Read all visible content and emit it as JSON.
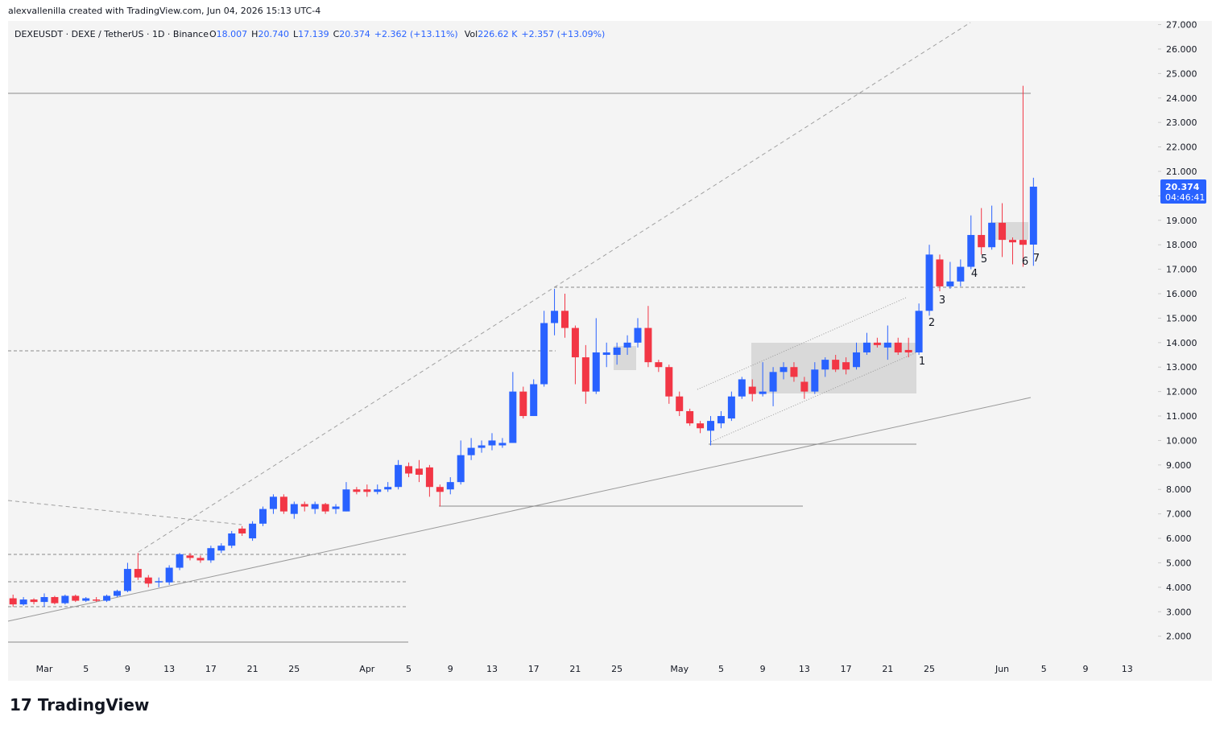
{
  "header": "alexvallenilla created with TradingView.com, Jun 04, 2026 15:13 UTC-4",
  "logo": "TradingView",
  "chart_data": {
    "type": "candlestick",
    "symbol": "DEXEUSDT · DEXE / TetherUS · 1D · Binance",
    "ohlc_legend": [
      {
        "label": "O",
        "value": "18.007"
      },
      {
        "label": "H",
        "value": "20.740"
      },
      {
        "label": "L",
        "value": "17.139"
      },
      {
        "label": "C",
        "value": "20.374"
      }
    ],
    "change": "+2.362 (+13.11%)",
    "volume": {
      "label": "Vol",
      "value": "226.62 K",
      "change": "+2.357 (+13.09%)"
    },
    "last_price_label": "20.374",
    "countdown": "04:46:41",
    "wave_labels": [
      "1",
      "2",
      "3",
      "4",
      "5",
      "6",
      "7"
    ],
    "up_color": "#2962ff",
    "down_color": "#f23645",
    "categories": [
      null,
      null,
      null,
      "Mar",
      null,
      null,
      null,
      "5",
      null,
      null,
      null,
      "9",
      null,
      null,
      null,
      "13",
      null,
      null,
      null,
      "17",
      null,
      null,
      null,
      "21",
      null,
      null,
      null,
      "25",
      null,
      null,
      null,
      null,
      null,
      null,
      "Apr",
      null,
      null,
      null,
      "5",
      null,
      null,
      null,
      "9",
      null,
      null,
      null,
      "13",
      null,
      null,
      null,
      "17",
      null,
      null,
      null,
      "21",
      null,
      null,
      null,
      "25",
      null,
      null,
      null,
      null,
      null,
      "May",
      null,
      null,
      null,
      "5",
      null,
      null,
      null,
      "9",
      null,
      null,
      null,
      "13",
      null,
      null,
      null,
      "17",
      null,
      null,
      null,
      "21",
      null,
      null,
      null,
      "25",
      null,
      null,
      null,
      null,
      null,
      null,
      "Jun",
      null,
      null,
      null,
      "5",
      null,
      null,
      null,
      "9",
      null,
      null,
      null,
      "13",
      null,
      null
    ],
    "open": [
      3.55,
      3.3,
      3.5,
      3.4,
      3.6,
      3.35,
      3.65,
      3.45,
      3.5,
      3.45,
      3.65,
      3.85,
      4.75,
      4.4,
      4.2,
      4.2,
      4.8,
      5.3,
      5.2,
      5.1,
      5.5,
      5.7,
      6.4,
      6.0,
      6.6,
      7.2,
      7.7,
      7.0,
      7.4,
      7.2,
      7.4,
      7.2,
      7.1,
      8.0,
      8.0,
      7.9,
      8.0,
      8.1,
      8.95,
      8.85,
      8.9,
      8.1,
      8.0,
      8.3,
      9.4,
      9.7,
      9.8,
      9.8,
      9.9,
      12.0,
      11.0,
      12.3,
      14.8,
      15.3,
      14.6,
      13.4,
      12.0,
      13.5,
      13.5,
      13.8,
      14.0,
      14.6,
      13.2,
      13.0,
      11.8,
      11.2,
      10.7,
      10.4,
      10.7,
      10.9,
      11.8,
      12.2,
      11.9,
      12.0,
      12.8,
      13.0,
      12.4,
      12.0,
      12.9,
      13.3,
      13.2,
      13.0,
      13.6,
      14.0,
      13.8,
      14.0,
      13.7,
      13.6,
      15.3,
      17.4,
      16.3,
      16.5,
      17.1,
      18.4,
      17.9,
      18.9,
      18.2,
      18.2,
      18.007,
      null,
      null,
      null,
      null,
      null,
      null,
      null,
      null,
      null,
      null,
      null
    ],
    "high": [
      3.7,
      3.6,
      3.55,
      3.75,
      3.65,
      3.7,
      3.7,
      3.6,
      3.6,
      3.7,
      3.9,
      5.0,
      5.4,
      4.5,
      4.4,
      4.9,
      5.4,
      5.4,
      5.3,
      5.7,
      5.8,
      6.3,
      6.5,
      6.7,
      7.3,
      7.8,
      7.8,
      7.5,
      7.5,
      7.5,
      7.45,
      7.4,
      8.3,
      8.1,
      8.2,
      8.2,
      8.3,
      9.2,
      9.1,
      9.2,
      9.0,
      8.2,
      8.5,
      10.0,
      10.1,
      10.0,
      10.3,
      10.1,
      12.8,
      12.2,
      12.5,
      15.3,
      16.2,
      16.0,
      14.7,
      13.9,
      15.0,
      14.0,
      14.0,
      14.3,
      15.0,
      15.5,
      13.3,
      13.1,
      12.0,
      11.3,
      10.8,
      11.0,
      11.2,
      12.0,
      12.6,
      12.5,
      13.2,
      13.0,
      13.2,
      13.2,
      12.6,
      13.2,
      13.4,
      13.5,
      13.4,
      14.0,
      14.4,
      14.2,
      14.7,
      14.2,
      14.2,
      15.6,
      18.0,
      17.6,
      17.3,
      17.4,
      19.2,
      19.5,
      19.6,
      19.7,
      18.3,
      24.5,
      20.74,
      null,
      null,
      null,
      null,
      null,
      null,
      null,
      null,
      null,
      null,
      null
    ],
    "low": [
      3.2,
      3.25,
      3.3,
      3.2,
      3.3,
      3.3,
      3.4,
      3.4,
      3.4,
      3.4,
      3.6,
      3.8,
      4.3,
      4.0,
      4.0,
      4.1,
      4.7,
      5.1,
      5.0,
      5.0,
      5.4,
      5.6,
      6.1,
      5.9,
      6.5,
      7.0,
      7.0,
      6.8,
      7.1,
      7.0,
      7.0,
      7.0,
      7.1,
      7.8,
      7.7,
      7.8,
      7.9,
      8.0,
      8.5,
      8.3,
      7.7,
      7.3,
      7.8,
      8.2,
      9.2,
      9.5,
      9.6,
      9.7,
      9.9,
      10.9,
      11.0,
      12.2,
      14.3,
      14.2,
      12.3,
      11.5,
      11.9,
      13.0,
      13.1,
      13.5,
      13.8,
      13.0,
      12.8,
      11.5,
      11.0,
      10.6,
      10.3,
      9.8,
      10.5,
      10.8,
      11.7,
      11.6,
      11.8,
      11.4,
      12.5,
      12.4,
      11.7,
      11.9,
      12.6,
      12.8,
      12.7,
      12.9,
      13.5,
      13.8,
      13.3,
      13.5,
      13.4,
      13.5,
      15.1,
      16.1,
      16.2,
      16.3,
      17.0,
      17.6,
      17.8,
      17.5,
      17.2,
      17.1,
      17.139,
      null,
      null,
      null,
      null,
      null,
      null,
      null,
      null,
      null,
      null,
      null
    ],
    "close": [
      3.3,
      3.5,
      3.4,
      3.6,
      3.35,
      3.65,
      3.45,
      3.55,
      3.45,
      3.65,
      3.85,
      4.75,
      4.4,
      4.15,
      4.25,
      4.8,
      5.35,
      5.2,
      5.1,
      5.6,
      5.7,
      6.2,
      6.2,
      6.6,
      7.2,
      7.7,
      7.1,
      7.4,
      7.3,
      7.4,
      7.1,
      7.3,
      8.0,
      7.9,
      7.9,
      8.0,
      8.1,
      9.0,
      8.65,
      8.6,
      8.1,
      7.9,
      8.3,
      9.4,
      9.7,
      9.8,
      10.0,
      9.9,
      12.0,
      11.0,
      12.3,
      14.8,
      15.3,
      14.6,
      13.4,
      12.0,
      13.6,
      13.6,
      13.8,
      14.0,
      14.6,
      13.2,
      13.0,
      11.8,
      11.2,
      10.7,
      10.5,
      10.8,
      11.0,
      11.8,
      12.5,
      11.9,
      12.0,
      12.8,
      13.0,
      12.6,
      12.0,
      12.9,
      13.3,
      12.9,
      12.9,
      13.6,
      14.0,
      13.9,
      14.0,
      13.6,
      13.6,
      15.3,
      17.6,
      16.3,
      16.5,
      17.1,
      18.4,
      17.9,
      18.9,
      18.2,
      18.1,
      18.0,
      20.374,
      null,
      null,
      null,
      null,
      null,
      null,
      null,
      null,
      null,
      null,
      null
    ],
    "ylim": [
      1.2,
      27.15
    ],
    "yticks": [
      {
        "value": 2,
        "label": "2.000"
      },
      {
        "value": 3,
        "label": "3.000"
      },
      {
        "value": 4,
        "label": "4.000"
      },
      {
        "value": 5,
        "label": "5.000"
      },
      {
        "value": 6,
        "label": "6.000"
      },
      {
        "value": 7,
        "label": "7.000"
      },
      {
        "value": 8,
        "label": "8.000"
      },
      {
        "value": 9,
        "label": "9.000"
      },
      {
        "value": 10,
        "label": "10.000"
      },
      {
        "value": 11,
        "label": "11.000"
      },
      {
        "value": 12,
        "label": "12.000"
      },
      {
        "value": 13,
        "label": "13.000"
      },
      {
        "value": 14,
        "label": "14.000"
      },
      {
        "value": 15,
        "label": "15.000"
      },
      {
        "value": 16,
        "label": "16.000"
      },
      {
        "value": 17,
        "label": "17.000"
      },
      {
        "value": 18,
        "label": "18.000"
      },
      {
        "value": 19,
        "label": "19.000"
      },
      {
        "value": 20,
        "label": "20.000"
      },
      {
        "value": 21,
        "label": "21.000"
      },
      {
        "value": 22,
        "label": "22.000"
      },
      {
        "value": 23,
        "label": "23.000"
      },
      {
        "value": 24,
        "label": "24.000"
      },
      {
        "value": 25,
        "label": "25.000"
      },
      {
        "value": 26,
        "label": "26.000"
      },
      {
        "value": 27,
        "label": "27.000"
      }
    ],
    "grid": false
  }
}
